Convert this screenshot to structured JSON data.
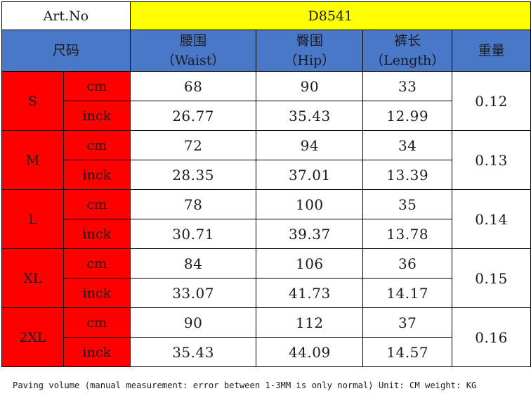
{
  "art": {
    "label": "Art.No",
    "value": "D8541"
  },
  "header": {
    "size": "尺码",
    "waist_cn": "腰围",
    "waist_en": "（Waist）",
    "hip_cn": "臀围",
    "hip_en": "（Hip）",
    "length_cn": "裤长",
    "length_en": "（Length）",
    "weight": "重量"
  },
  "rows": [
    {
      "size": "S",
      "cm": [
        "68",
        "90",
        "33"
      ],
      "inch": [
        "26.77",
        "35.43",
        "12.99"
      ],
      "weight": "0.12"
    },
    {
      "size": "M",
      "cm": [
        "72",
        "94",
        "34"
      ],
      "inch": [
        "28.35",
        "37.01",
        "13.39"
      ],
      "weight": "0.13"
    },
    {
      "size": "L",
      "cm": [
        "78",
        "100",
        "35"
      ],
      "inch": [
        "30.71",
        "39.37",
        "13.78"
      ],
      "weight": "0.14"
    },
    {
      "size": "XL",
      "cm": [
        "84",
        "106",
        "36"
      ],
      "inch": [
        "33.07",
        "41.73",
        "14.17"
      ],
      "weight": "0.15"
    },
    {
      "size": "2XL",
      "cm": [
        "90",
        "112",
        "37"
      ],
      "inch": [
        "35.43",
        "44.09",
        "14.57"
      ],
      "weight": "0.16"
    }
  ],
  "units": {
    "cm": "cm",
    "inch": "inck"
  },
  "note": "Paving volume (manual measurement: error between 1-3MM is only normal) Unit: CM weight: KG",
  "colors": {
    "yellow": "#ffff00",
    "header_blue": "#4a78c9",
    "red": "#ff0000"
  }
}
